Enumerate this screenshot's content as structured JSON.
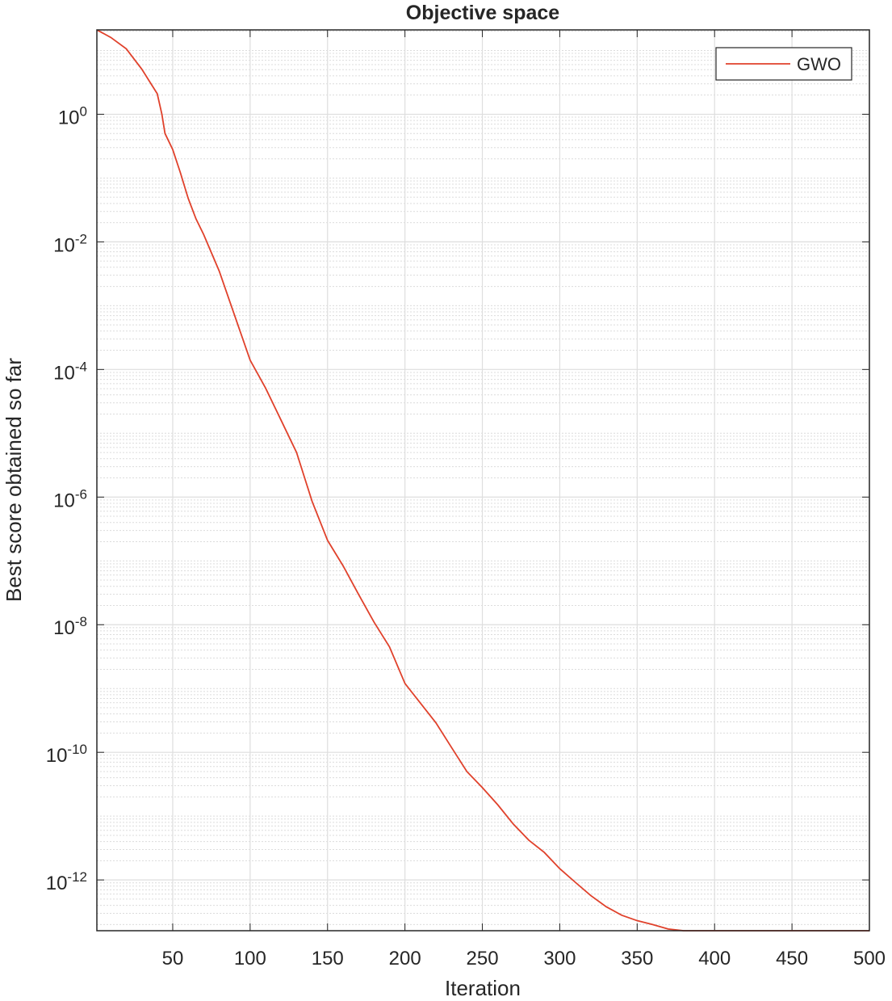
{
  "chart_data": {
    "type": "line",
    "title": "Objective space",
    "xlabel": "Iteration",
    "ylabel": "Best score obtained so far",
    "x": [
      1,
      10,
      20,
      30,
      40,
      43,
      45,
      50,
      55,
      60,
      65,
      70,
      80,
      90,
      100,
      110,
      120,
      130,
      140,
      150,
      160,
      170,
      180,
      190,
      200,
      210,
      220,
      230,
      240,
      250,
      260,
      270,
      280,
      290,
      300,
      310,
      320,
      330,
      340,
      350,
      360,
      370,
      380,
      500
    ],
    "series": [
      {
        "name": "GWO",
        "color": "#e0412b",
        "values": [
          21,
          16,
          10.6,
          5.1,
          2.1,
          1.0,
          0.5,
          0.28,
          0.12,
          0.048,
          0.023,
          0.013,
          0.0035,
          0.0007,
          0.00014,
          5.1e-05,
          1.6e-05,
          5e-06,
          8.6e-07,
          2.1e-07,
          8.4e-08,
          3e-08,
          1.1e-08,
          4.5e-09,
          1.2e-09,
          5.9e-10,
          2.9e-10,
          1.2e-10,
          5e-11,
          2.8e-11,
          1.5e-11,
          7.5e-12,
          4.2e-12,
          2.7e-12,
          1.5e-12,
          9.2e-13,
          5.7e-13,
          3.8e-13,
          2.8e-13,
          2.3e-13,
          2e-13,
          1.7e-13,
          1.6e-13,
          1.6e-13
        ]
      }
    ],
    "xlim": [
      1,
      500
    ],
    "xticks": [
      50,
      100,
      150,
      200,
      250,
      300,
      350,
      400,
      450,
      500
    ],
    "ylim": [
      1.6e-13,
      21
    ],
    "ylog": true,
    "yticks": [
      {
        "value": 1e-12,
        "label": "10^-12"
      },
      {
        "value": 1e-10,
        "label": "10^-10"
      },
      {
        "value": 1e-08,
        "label": "10^-8"
      },
      {
        "value": 1e-06,
        "label": "10^-6"
      },
      {
        "value": 0.0001,
        "label": "10^-4"
      },
      {
        "value": 0.01,
        "label": "10^-2"
      },
      {
        "value": 1,
        "label": "10^0"
      }
    ],
    "grid": true,
    "minor_grid": true,
    "legend": "northeast"
  }
}
